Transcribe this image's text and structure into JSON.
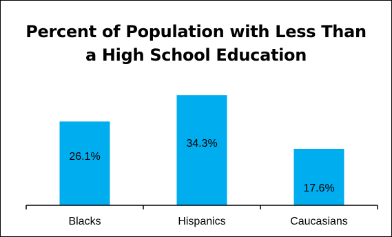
{
  "chart_data": {
    "type": "bar",
    "title_lines": [
      "Percent of Population with Less Than",
      "a High School Education"
    ],
    "categories": [
      "Blacks",
      "Hispanics",
      "Caucasians"
    ],
    "values": [
      26.1,
      34.3,
      17.6
    ],
    "value_labels": [
      "26.1%",
      "34.3%",
      "17.6%"
    ],
    "bar_color": "#00adef",
    "grid": false,
    "legend": "none"
  }
}
